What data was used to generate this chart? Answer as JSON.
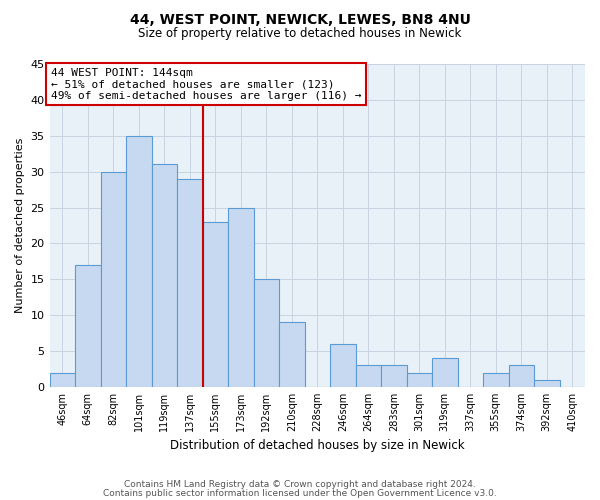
{
  "title": "44, WEST POINT, NEWICK, LEWES, BN8 4NU",
  "subtitle": "Size of property relative to detached houses in Newick",
  "xlabel": "Distribution of detached houses by size in Newick",
  "ylabel": "Number of detached properties",
  "bar_labels": [
    "46sqm",
    "64sqm",
    "82sqm",
    "101sqm",
    "119sqm",
    "137sqm",
    "155sqm",
    "173sqm",
    "192sqm",
    "210sqm",
    "228sqm",
    "246sqm",
    "264sqm",
    "283sqm",
    "301sqm",
    "319sqm",
    "337sqm",
    "355sqm",
    "374sqm",
    "392sqm",
    "410sqm"
  ],
  "bar_values": [
    2,
    17,
    30,
    35,
    31,
    29,
    23,
    25,
    15,
    9,
    0,
    6,
    3,
    3,
    2,
    4,
    0,
    2,
    3,
    1,
    0
  ],
  "bar_color": "#c6d9f0",
  "bar_edge_color": "#5b9bd5",
  "vline_x_idx": 6,
  "vline_color": "#cc0000",
  "annotation_line1": "44 WEST POINT: 144sqm",
  "annotation_line2": "← 51% of detached houses are smaller (123)",
  "annotation_line3": "49% of semi-detached houses are larger (116) →",
  "annotation_box_color": "#ffffff",
  "annotation_box_edge": "#cc0000",
  "ylim": [
    0,
    45
  ],
  "yticks": [
    0,
    5,
    10,
    15,
    20,
    25,
    30,
    35,
    40,
    45
  ],
  "footer_line1": "Contains HM Land Registry data © Crown copyright and database right 2024.",
  "footer_line2": "Contains public sector information licensed under the Open Government Licence v3.0.",
  "bg_color": "#ffffff",
  "plot_bg_color": "#e8f0f8",
  "grid_color": "#c8d4e0"
}
